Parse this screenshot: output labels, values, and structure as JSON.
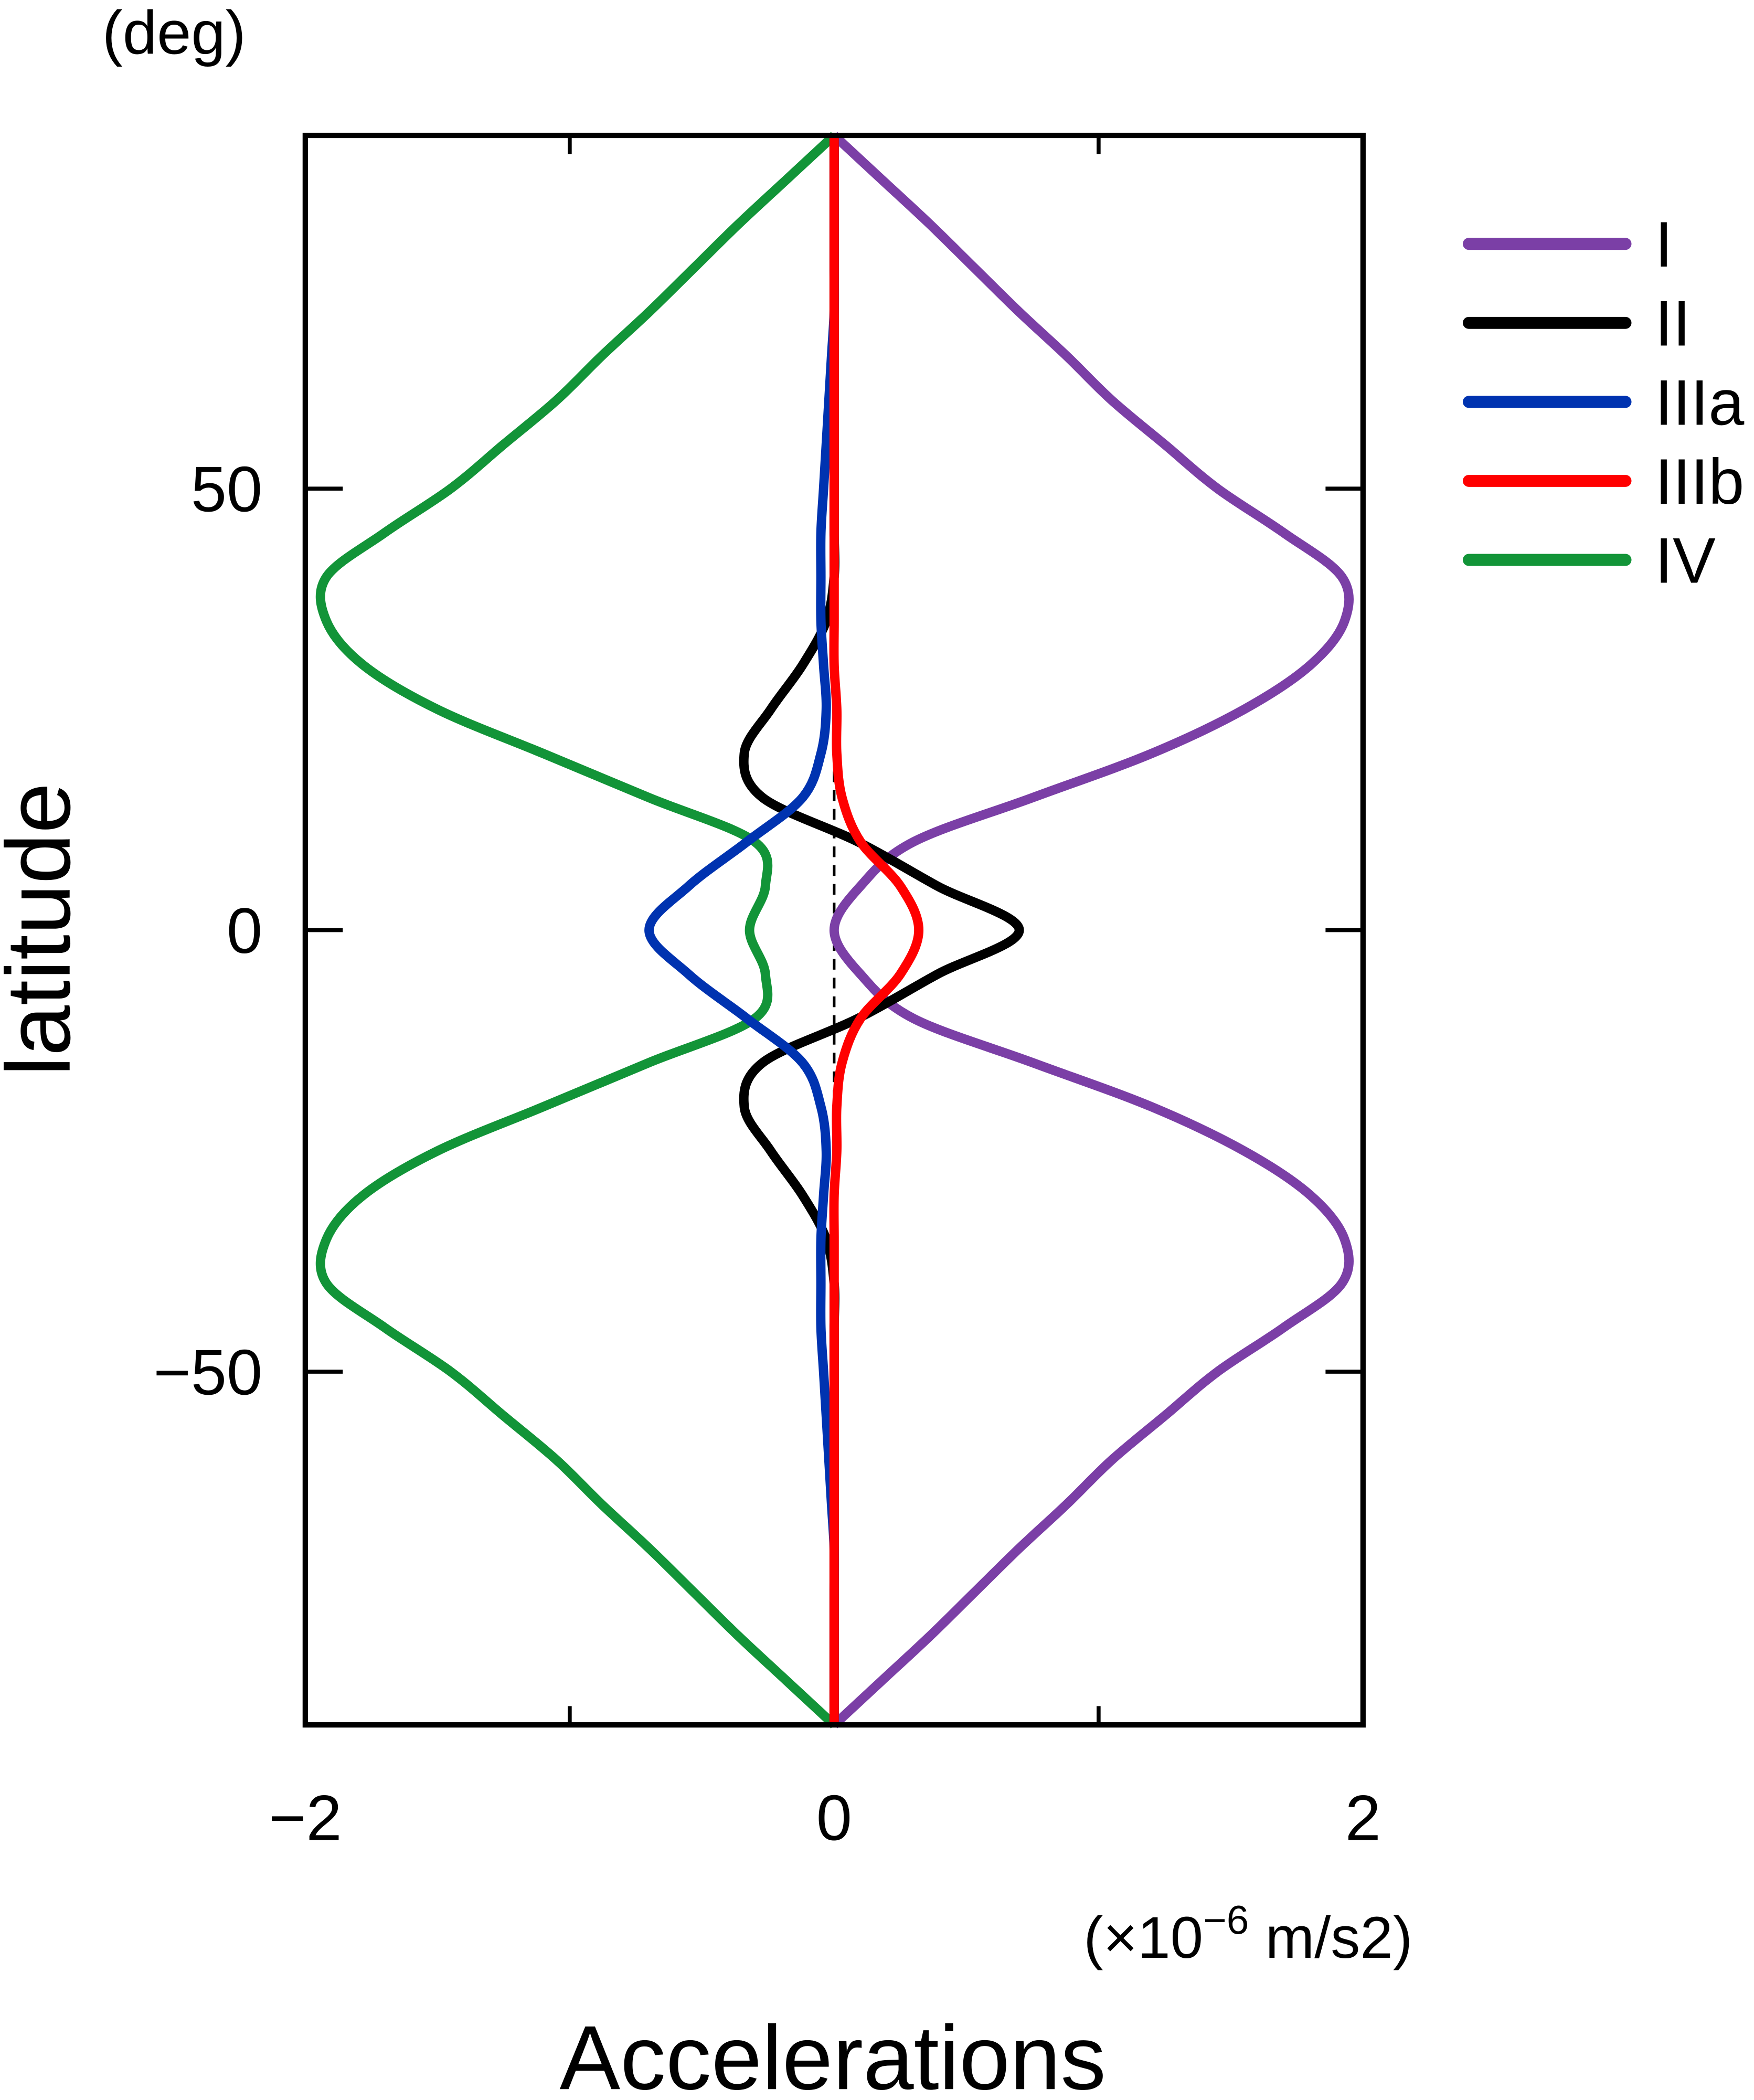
{
  "chart_data": {
    "type": "line",
    "y_label": "latitude",
    "y_unit": "(deg)",
    "x_label": "Accelerations",
    "x_unit": [
      "(×10",
      "−6",
      " m/s2)"
    ],
    "y": [
      -90,
      -85,
      -80,
      -75,
      -70,
      -65,
      -60,
      -55,
      -50,
      -45,
      -40,
      -35,
      -30,
      -25,
      -20,
      -15,
      -10,
      -5,
      0,
      5,
      10,
      15,
      20,
      25,
      30,
      35,
      40,
      45,
      50,
      55,
      60,
      65,
      70,
      75,
      80,
      85,
      90
    ],
    "series": [
      {
        "name": "I",
        "color": "#7b3fa6",
        "values": [
          0,
          0.18,
          0.36,
          0.53,
          0.7,
          0.88,
          1.05,
          1.25,
          1.45,
          1.7,
          1.92,
          1.93,
          1.8,
          1.55,
          1.2,
          0.75,
          0.3,
          0.1,
          0,
          0.1,
          0.3,
          0.75,
          1.2,
          1.55,
          1.8,
          1.93,
          1.92,
          1.7,
          1.45,
          1.25,
          1.05,
          0.88,
          0.7,
          0.53,
          0.36,
          0.18,
          0
        ]
      },
      {
        "name": "II",
        "color": "#000000",
        "values": [
          0,
          0,
          0,
          0,
          0,
          0,
          0,
          0,
          0,
          0,
          0,
          -0.03,
          -0.12,
          -0.24,
          -0.34,
          -0.27,
          0.09,
          0.39,
          0.7,
          0.39,
          0.09,
          -0.27,
          -0.34,
          -0.24,
          -0.12,
          -0.03,
          0,
          0,
          0,
          0,
          0,
          0,
          0,
          0,
          0,
          0,
          0
        ]
      },
      {
        "name": "IIIa",
        "color": "#0033b0",
        "values": [
          0,
          0,
          0,
          0,
          0,
          -0.01,
          -0.02,
          -0.03,
          -0.04,
          -0.05,
          -0.05,
          -0.05,
          -0.04,
          -0.03,
          -0.05,
          -0.12,
          -0.33,
          -0.55,
          -0.7,
          -0.55,
          -0.33,
          -0.12,
          -0.05,
          -0.03,
          -0.04,
          -0.05,
          -0.05,
          -0.05,
          -0.04,
          -0.03,
          -0.02,
          -0.01,
          0,
          0,
          0,
          0,
          0
        ]
      },
      {
        "name": "IIIb",
        "color": "#ff0000",
        "values": [
          0,
          0,
          0,
          0,
          0,
          0,
          0,
          0,
          0,
          0,
          0,
          0,
          0,
          0.01,
          0.01,
          0.03,
          0.1,
          0.25,
          0.32,
          0.25,
          0.1,
          0.03,
          0.01,
          0.01,
          0,
          0,
          0,
          0,
          0,
          0,
          0,
          0,
          0,
          0,
          0,
          0,
          0
        ]
      },
      {
        "name": "IV",
        "color": "#129438",
        "values": [
          0,
          -0.18,
          -0.36,
          -0.53,
          -0.7,
          -0.88,
          -1.05,
          -1.25,
          -1.45,
          -1.7,
          -1.92,
          -1.92,
          -1.78,
          -1.5,
          -1.1,
          -0.7,
          -0.3,
          -0.26,
          -0.32,
          -0.26,
          -0.3,
          -0.7,
          -1.1,
          -1.5,
          -1.78,
          -1.92,
          -1.92,
          -1.7,
          -1.45,
          -1.25,
          -1.05,
          -0.88,
          -0.7,
          -0.53,
          -0.36,
          -0.18,
          0
        ]
      }
    ],
    "xlim": [
      -2,
      2
    ],
    "ylim": [
      -90,
      90
    ],
    "xticks": [
      {
        "value": -2,
        "label": "−2"
      },
      0,
      2
    ],
    "xminorticks": [
      -1,
      1
    ],
    "yticks": [
      {
        "value": -50,
        "label": "−50"
      },
      0,
      50
    ],
    "legend": "right"
  }
}
